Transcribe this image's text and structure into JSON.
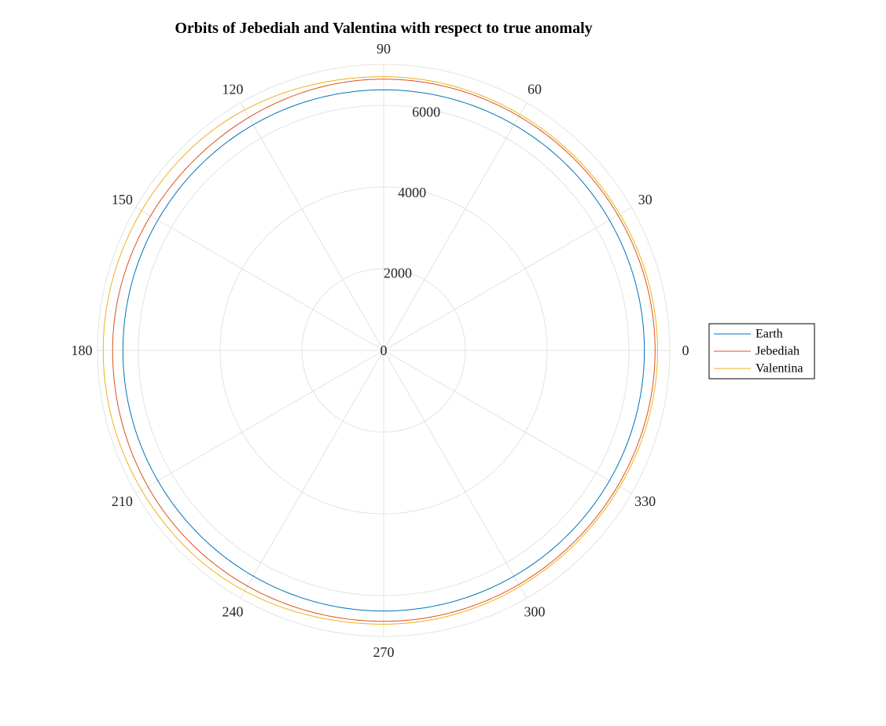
{
  "chart_data": {
    "type": "polar-line",
    "title": "Orbits of Jebediah and Valentina with respect to true anomaly",
    "theta_unit": "degrees",
    "theta_ticks": [
      0,
      30,
      60,
      90,
      120,
      150,
      180,
      210,
      240,
      270,
      300,
      330
    ],
    "theta_tick_labels": [
      "0",
      "30",
      "60",
      "90",
      "120",
      "150",
      "180",
      "210",
      "240",
      "270",
      "300",
      "330"
    ],
    "r_ticks": [
      0,
      2000,
      4000,
      6000
    ],
    "r_tick_labels": [
      "0",
      "2000",
      "4000",
      "6000"
    ],
    "rlim": [
      0,
      7000
    ],
    "grid": true,
    "legend_position": "right",
    "series": [
      {
        "name": "Earth",
        "color": "#0072BD",
        "points": [
          [
            0,
            6378
          ],
          [
            90,
            6378
          ],
          [
            180,
            6378
          ],
          [
            270,
            6378
          ],
          [
            360,
            6378
          ]
        ]
      },
      {
        "name": "Jebediah",
        "color": "#D95319",
        "points": [
          [
            0,
            6640
          ],
          [
            45,
            6610
          ],
          [
            90,
            6640
          ],
          [
            135,
            6570
          ],
          [
            180,
            6630
          ],
          [
            225,
            6670
          ],
          [
            270,
            6630
          ],
          [
            315,
            6610
          ],
          [
            360,
            6640
          ]
        ]
      },
      {
        "name": "Valentina",
        "color": "#EDB120",
        "points": [
          [
            0,
            6700
          ],
          [
            45,
            6660
          ],
          [
            90,
            6700
          ],
          [
            135,
            6830
          ],
          [
            180,
            6860
          ],
          [
            225,
            6830
          ],
          [
            270,
            6700
          ],
          [
            315,
            6660
          ],
          [
            360,
            6700
          ]
        ]
      }
    ]
  }
}
